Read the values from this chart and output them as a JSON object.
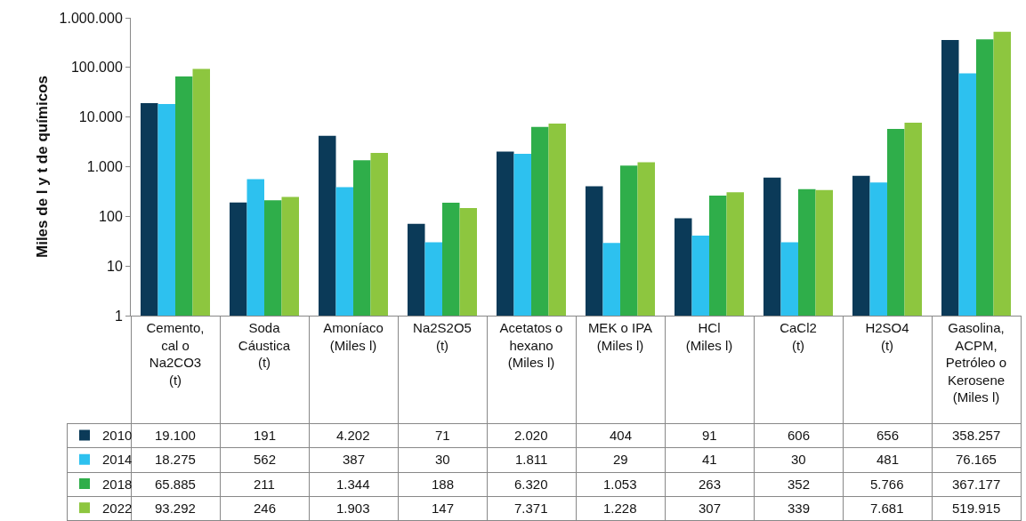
{
  "chart_data": {
    "type": "bar",
    "ylabel": "Miles de l y t de químicos",
    "log": "y",
    "ylim": [
      1,
      1000000
    ],
    "yticks": [
      {
        "value": 1,
        "label": "1"
      },
      {
        "value": 10,
        "label": "10"
      },
      {
        "value": 100,
        "label": "100"
      },
      {
        "value": 1000,
        "label": "1.000"
      },
      {
        "value": 10000,
        "label": "10.000"
      },
      {
        "value": 100000,
        "label": "100.000"
      },
      {
        "value": 1000000,
        "label": "1.000.000"
      }
    ],
    "categories": [
      "Cemento, cal o Na2CO3 (t)",
      "Soda Cáustica (t)",
      "Amoníaco (Miles l)",
      "Na2S2O5 (t)",
      "Acetatos o hexano (Miles l)",
      "MEK o IPA (Miles l)",
      "HCl (Miles l)",
      "CaCl2 (t)",
      "H2SO4 (t)",
      "Gasolina, ACPM, Petróleo o Kerosene (Miles l)"
    ],
    "legend": "bottom left",
    "series": [
      {
        "name": "2010",
        "color": "#0b3a58",
        "values": [
          19100,
          191,
          4202,
          71,
          2020,
          404,
          91,
          606,
          656,
          358257
        ],
        "value_labels": [
          "19.100",
          "191",
          "4.202",
          "71",
          "2.020",
          "404",
          "91",
          "606",
          "656",
          "358.257"
        ]
      },
      {
        "name": "2014",
        "color": "#2dc1ef",
        "values": [
          18275,
          562,
          387,
          30,
          1811,
          29,
          41,
          30,
          481,
          76165
        ],
        "value_labels": [
          "18.275",
          "562",
          "387",
          "30",
          "1.811",
          "29",
          "41",
          "30",
          "481",
          "76.165"
        ]
      },
      {
        "name": "2018",
        "color": "#2fae4a",
        "values": [
          65885,
          211,
          1344,
          188,
          6320,
          1053,
          263,
          352,
          5766,
          367177
        ],
        "value_labels": [
          "65.885",
          "211",
          "1.344",
          "188",
          "6.320",
          "1.053",
          "263",
          "352",
          "5.766",
          "367.177"
        ]
      },
      {
        "name": "2022",
        "color": "#8dc63f",
        "values": [
          93292,
          246,
          1903,
          147,
          7371,
          1228,
          307,
          339,
          7681,
          519915
        ],
        "value_labels": [
          "93.292",
          "246",
          "1.903",
          "147",
          "7.371",
          "1.228",
          "307",
          "339",
          "7.681",
          "519.915"
        ]
      }
    ]
  }
}
